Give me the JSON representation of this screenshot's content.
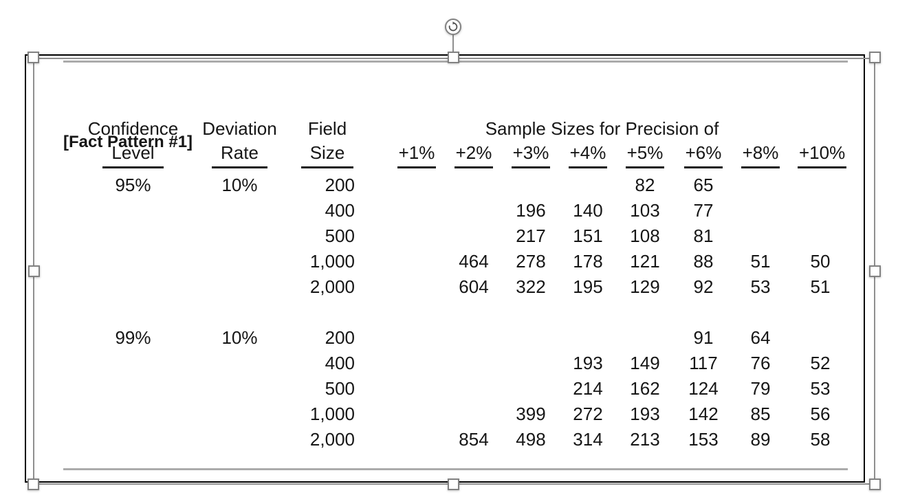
{
  "window": {
    "background_color": "#ffffff"
  },
  "selection": {
    "rotation_icon": "rotate-clockwise-icon",
    "marquee_color": "#8f8f8f",
    "handle_fill": "#ffffff",
    "handle_border": "#828282"
  },
  "exhibit": {
    "title": "[Fact Pattern #1]",
    "frame_color": "#000000",
    "rule_color": "#ababab",
    "table": {
      "group_header": "Sample Sizes for Precision of",
      "row_headers": [
        {
          "line1": "Confidence",
          "line2": "Level"
        },
        {
          "line1": "Deviation",
          "line2": "Rate"
        },
        {
          "line1": "Field",
          "line2": "Size"
        }
      ],
      "precision_headers": [
        "+1%",
        "+2%",
        "+3%",
        "+4%",
        "+5%",
        "+6%",
        "+8%",
        "+10%"
      ],
      "rows": [
        {
          "confidence": "95%",
          "deviation": "10%",
          "field_size": "200",
          "values": [
            "",
            "",
            "",
            "",
            "82",
            "65",
            "",
            ""
          ]
        },
        {
          "confidence": "",
          "deviation": "",
          "field_size": "400",
          "values": [
            "",
            "",
            "196",
            "140",
            "103",
            "77",
            "",
            ""
          ]
        },
        {
          "confidence": "",
          "deviation": "",
          "field_size": "500",
          "values": [
            "",
            "",
            "217",
            "151",
            "108",
            "81",
            "",
            ""
          ]
        },
        {
          "confidence": "",
          "deviation": "",
          "field_size": "1,000",
          "values": [
            "",
            "464",
            "278",
            "178",
            "121",
            "88",
            "51",
            "50"
          ]
        },
        {
          "confidence": "",
          "deviation": "",
          "field_size": "2,000",
          "values": [
            "",
            "604",
            "322",
            "195",
            "129",
            "92",
            "53",
            "51"
          ]
        },
        {
          "confidence": "99%",
          "deviation": "10%",
          "field_size": "200",
          "values": [
            "",
            "",
            "",
            "",
            "",
            "91",
            "64",
            ""
          ]
        },
        {
          "confidence": "",
          "deviation": "",
          "field_size": "400",
          "values": [
            "",
            "",
            "",
            "193",
            "149",
            "117",
            "76",
            "52"
          ]
        },
        {
          "confidence": "",
          "deviation": "",
          "field_size": "500",
          "values": [
            "",
            "",
            "",
            "214",
            "162",
            "124",
            "79",
            "53"
          ]
        },
        {
          "confidence": "",
          "deviation": "",
          "field_size": "1,000",
          "values": [
            "",
            "",
            "399",
            "272",
            "193",
            "142",
            "85",
            "56"
          ]
        },
        {
          "confidence": "",
          "deviation": "",
          "field_size": "2,000",
          "values": [
            "",
            "854",
            "498",
            "314",
            "213",
            "153",
            "89",
            "58"
          ]
        }
      ]
    }
  }
}
